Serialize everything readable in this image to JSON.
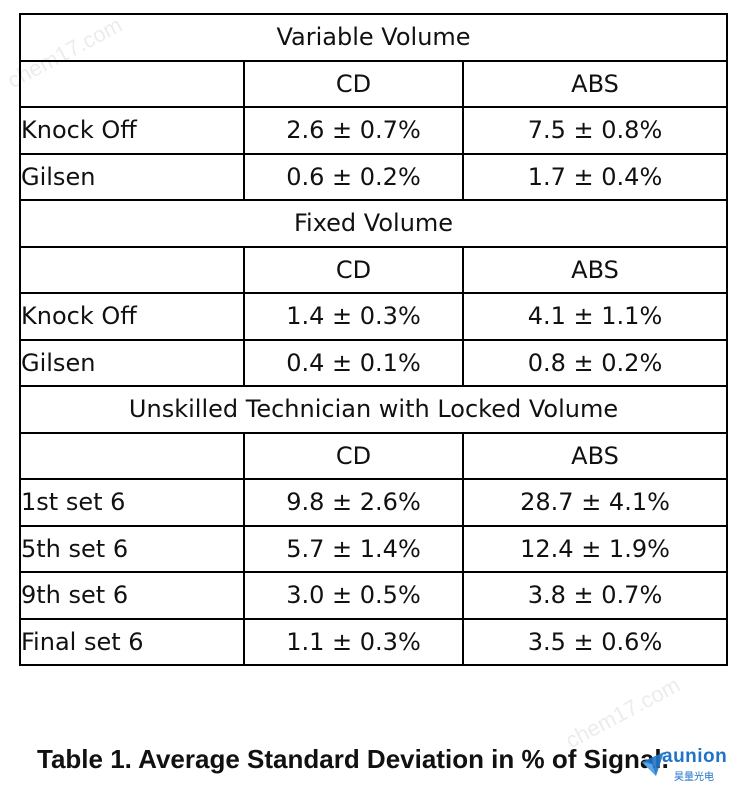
{
  "table": {
    "sections": [
      {
        "title": "Variable Volume",
        "columns": [
          "",
          "CD",
          "ABS"
        ],
        "rows": [
          {
            "label": "Knock Off",
            "cd": "2.6 ± 0.7%",
            "abs": "7.5 ± 0.8%"
          },
          {
            "label": "Gilsen",
            "cd": "0.6 ± 0.2%",
            "abs": "1.7 ± 0.4%"
          }
        ]
      },
      {
        "title": "Fixed Volume",
        "columns": [
          "",
          "CD",
          "ABS"
        ],
        "rows": [
          {
            "label": "Knock Off",
            "cd": "1.4 ± 0.3%",
            "abs": "4.1 ± 1.1%"
          },
          {
            "label": "Gilsen",
            "cd": "0.4 ± 0.1%",
            "abs": "0.8 ± 0.2%"
          }
        ]
      },
      {
        "title": "Unskilled Technician with Locked Volume",
        "columns": [
          "",
          "CD",
          "ABS"
        ],
        "rows": [
          {
            "label": "1st set 6",
            "cd": "9.8 ± 2.6%",
            "abs": "28.7 ± 4.1%"
          },
          {
            "label": "5th set 6",
            "cd": "5.7 ± 1.4%",
            "abs": "12.4 ± 1.9%"
          },
          {
            "label": "9th set 6",
            "cd": "3.0 ± 0.5%",
            "abs": "3.8 ± 0.7%"
          },
          {
            "label": "Final set 6",
            "cd": "1.1 ± 0.3%",
            "abs": "3.5 ± 0.6%"
          }
        ]
      }
    ]
  },
  "caption": "Table 1. Average Standard Deviation in % of Signal.",
  "watermarks": {
    "text_top": "chem17.com",
    "text_bottom": "chem17.com"
  },
  "logo": {
    "name": "aunion",
    "subtitle": "昊量光电",
    "color": "#1f73c9",
    "icon": "aunion-logo-mark-icon"
  }
}
